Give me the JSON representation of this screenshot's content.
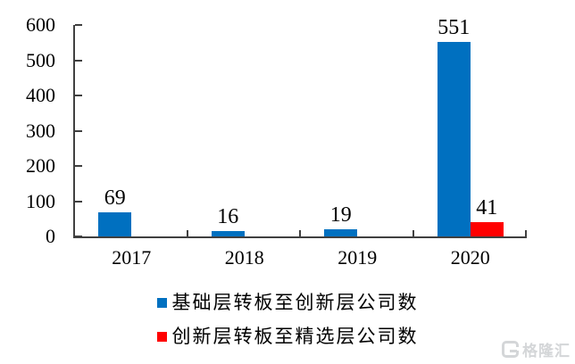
{
  "chart_data": {
    "type": "bar",
    "title": "",
    "categories": [
      "2017",
      "2018",
      "2019",
      "2020"
    ],
    "series": [
      {
        "name": "基础层转板至创新层公司数",
        "color": "#0070C0",
        "values": [
          69,
          16,
          19,
          551
        ]
      },
      {
        "name": "创新层转板至精选层公司数",
        "color": "#FF0000",
        "values": [
          0,
          0,
          0,
          41
        ]
      }
    ],
    "data_labels": true,
    "xlabel": "",
    "ylabel": "",
    "ylim": [
      0,
      600
    ],
    "y_ticks": [
      0,
      100,
      200,
      300,
      400,
      500,
      600
    ],
    "grid": false,
    "legend_position": "bottom"
  },
  "colors": {
    "axis": "#404040",
    "text": "#000000",
    "bar_blue": "#0070C0",
    "bar_red": "#FF0000",
    "background": "#FFFFFF",
    "watermark": "#D4D6D8"
  },
  "watermark": {
    "text": "格隆汇",
    "icon_letter": "G"
  }
}
